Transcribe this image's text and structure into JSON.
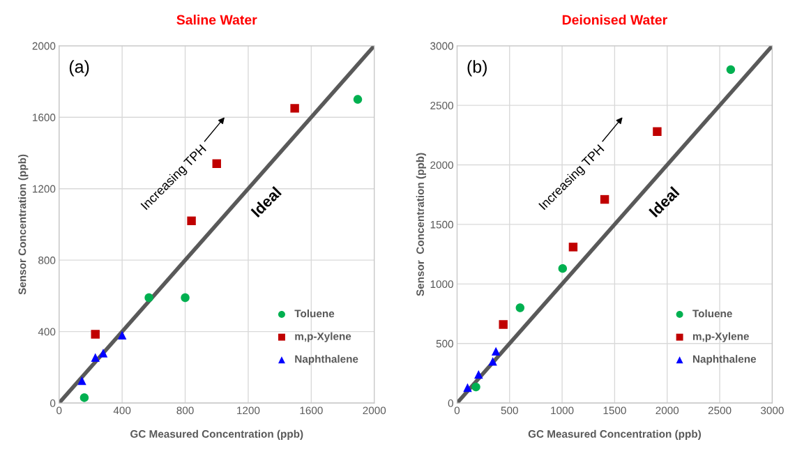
{
  "chart_data": [
    {
      "type": "scatter",
      "title": "Saline Water",
      "xlabel": "GC Measured Concentration (ppb)",
      "ylabel": "Sensor Concentration (ppb)",
      "xlim": [
        0,
        2000
      ],
      "ylim": [
        0,
        2000
      ],
      "xticks": [
        0,
        400,
        800,
        1200,
        1600,
        2000
      ],
      "yticks": [
        0,
        400,
        800,
        1200,
        1600,
        2000
      ],
      "grid": true,
      "legend": "bottom right",
      "annotations": [
        "(a)",
        "Increasing TPH"
      ],
      "series": [
        {
          "name": "Toluene",
          "color": "#00b050",
          "marker": "circle",
          "x": [
            160,
            570,
            800,
            1895
          ],
          "values": [
            30,
            590,
            590,
            1700
          ]
        },
        {
          "name": "m,p-Xylene",
          "color": "#c00000",
          "marker": "square",
          "x": [
            230,
            840,
            1000,
            1495
          ],
          "values": [
            385,
            1020,
            1340,
            1650
          ]
        },
        {
          "name": "Naphthalene",
          "color": "#0000ff",
          "marker": "triangle",
          "x": [
            145,
            230,
            280,
            400
          ],
          "values": [
            125,
            255,
            280,
            380
          ]
        },
        {
          "name": "Ideal",
          "type": "line",
          "color": "#595959",
          "x": [
            0,
            2000
          ],
          "values": [
            0,
            2000
          ]
        }
      ]
    },
    {
      "type": "scatter",
      "title": "Deionised Water",
      "xlabel": "GC Measured Concentration (ppb)",
      "ylabel": "Sensor  Concentration (ppb)",
      "xlim": [
        0,
        3000
      ],
      "ylim": [
        0,
        3000
      ],
      "xticks": [
        0,
        500,
        1000,
        1500,
        2000,
        2500,
        3000
      ],
      "yticks": [
        0,
        500,
        1000,
        1500,
        2000,
        2500,
        3000
      ],
      "grid": true,
      "legend": "bottom right",
      "annotations": [
        "(b)",
        "Increasing TPH"
      ],
      "series": [
        {
          "name": "Toluene",
          "color": "#00b050",
          "marker": "circle",
          "x": [
            180,
            600,
            1005,
            2605
          ],
          "values": [
            135,
            800,
            1130,
            2800
          ]
        },
        {
          "name": "m,p-Xylene",
          "color": "#c00000",
          "marker": "square",
          "x": [
            440,
            1105,
            1405,
            1905
          ],
          "values": [
            660,
            1310,
            1710,
            2280
          ]
        },
        {
          "name": "Naphthalene",
          "color": "#0000ff",
          "marker": "triangle",
          "x": [
            100,
            205,
            340,
            370
          ],
          "values": [
            130,
            240,
            350,
            435
          ]
        },
        {
          "name": "Ideal",
          "type": "line",
          "color": "#595959",
          "x": [
            0,
            3000
          ],
          "values": [
            0,
            3000
          ]
        }
      ]
    }
  ]
}
